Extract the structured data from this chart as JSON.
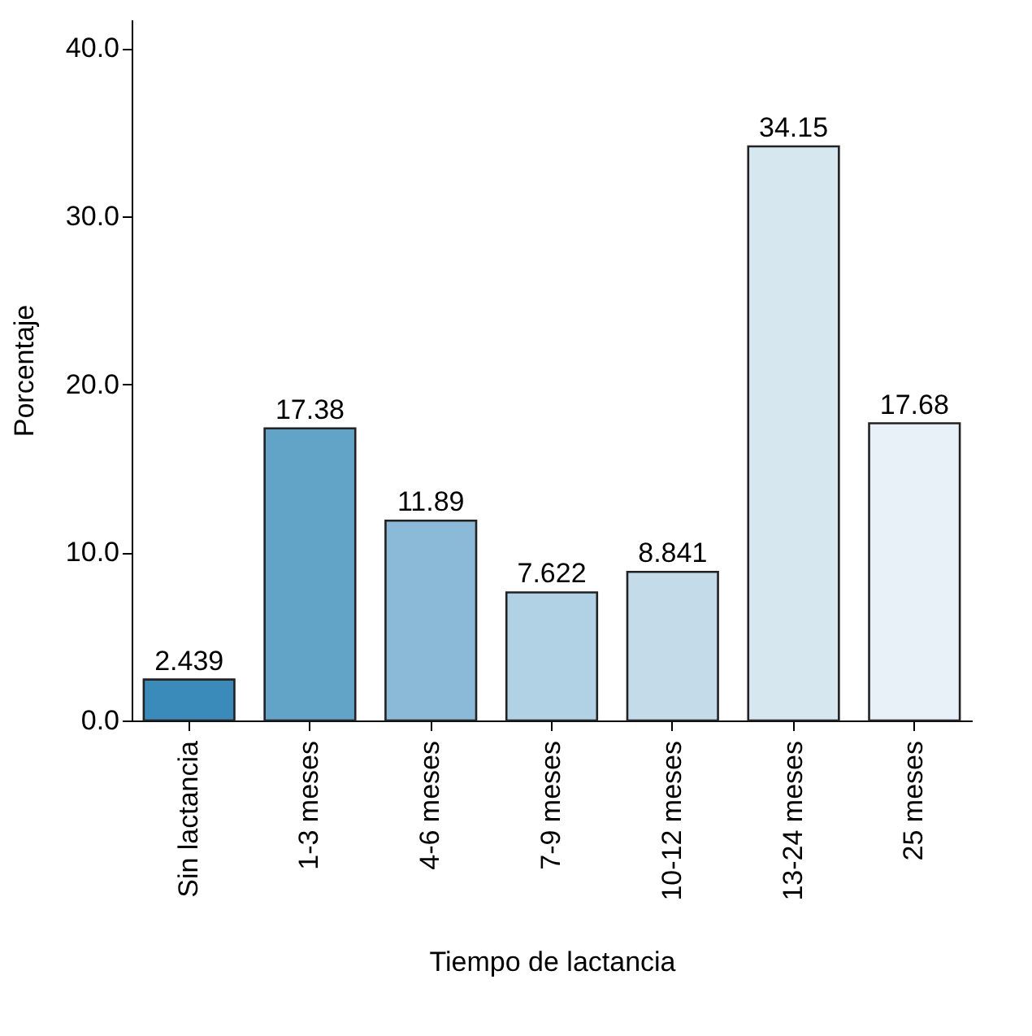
{
  "chart_data": {
    "type": "bar",
    "xlabel": "Tiempo de lactancia",
    "ylabel": "Porcentaje",
    "categories": [
      "Sin lactancia",
      "1-3 meses",
      "4-6 meses",
      "7-9 meses",
      "10-12 meses",
      "13-24 meses",
      "25 meses"
    ],
    "values": [
      2.439,
      17.38,
      11.89,
      7.622,
      8.841,
      34.15,
      17.68
    ],
    "colors": [
      "#3a8bba",
      "#62a4c8",
      "#8abad7",
      "#b1d1e4",
      "#c4dcea",
      "#d7e7f0",
      "#e9f1f8"
    ],
    "value_labels": [
      "2.439",
      "17.38",
      "11.89",
      "7.622",
      "8.841",
      "34.15",
      "17.68"
    ],
    "ylim": [
      0,
      41.7
    ],
    "yticks": [
      {
        "value": 0,
        "label": "0.0"
      },
      {
        "value": 10,
        "label": "10.0"
      },
      {
        "value": 20,
        "label": "20.0"
      },
      {
        "value": 30,
        "label": "30.0"
      },
      {
        "value": 40,
        "label": "40.0"
      }
    ],
    "grid": false
  }
}
